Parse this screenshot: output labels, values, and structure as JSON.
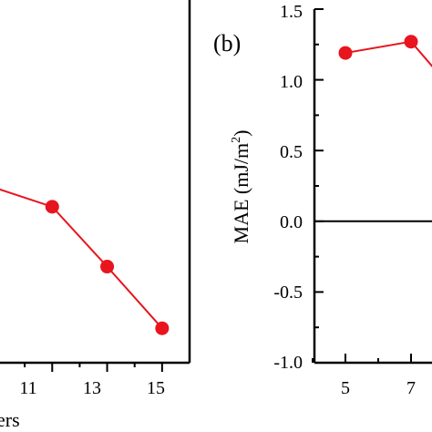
{
  "chart_data": [
    {
      "panel": "left (cropped)",
      "type": "line",
      "x_tick_labels": [
        "11",
        "13",
        "15"
      ],
      "xlabel": "ers",
      "x": [
        9,
        11,
        13,
        15
      ],
      "series": [
        {
          "color": "#e8141e",
          "values": [
            4.8,
            4.3,
            2.65,
            0.95
          ],
          "marker": "circle"
        }
      ],
      "xlim": [
        9.1,
        16.0
      ],
      "ylim": [
        0,
        10
      ],
      "grid": false
    },
    {
      "panel": "right",
      "panel_label": "(b)",
      "type": "line",
      "ylabel": "MAE (mJ/m2)",
      "ylabel_parts": {
        "main": "MAE (mJ/m",
        "sup": "2",
        "close": ")"
      },
      "x_tick_labels": [
        "5",
        "7"
      ],
      "y_tick_labels": [
        "1.5",
        "1.0",
        "0.5",
        "0.0",
        "-0.5",
        "-1.0"
      ],
      "x": [
        5,
        7,
        8
      ],
      "series": [
        {
          "color": "#e8141e",
          "values": [
            1.19,
            1.27,
            1.0
          ],
          "marker": "circle"
        }
      ],
      "reference_line_y": 0.0,
      "xlim": [
        4.0,
        8.0
      ],
      "ylim": [
        -1.0,
        1.5
      ],
      "grid": false
    }
  ]
}
